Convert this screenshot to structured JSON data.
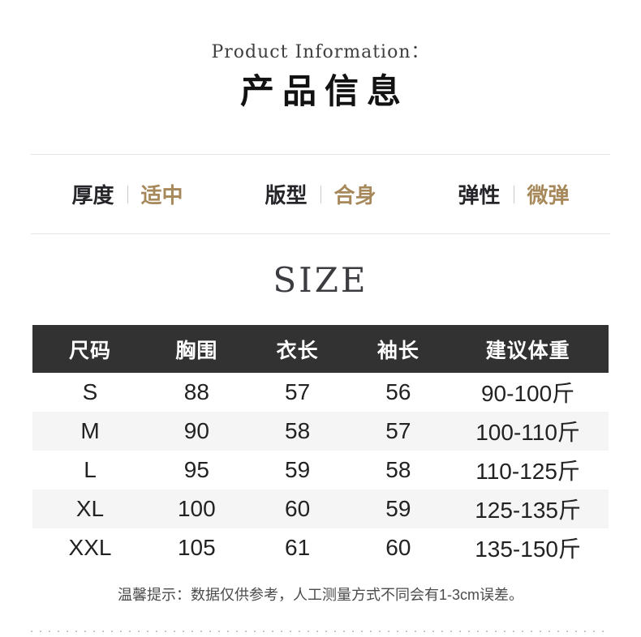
{
  "header": {
    "title_en": "Product Information：",
    "title_cn": "产品信息"
  },
  "attributes": [
    {
      "label": "厚度",
      "value": "适中"
    },
    {
      "label": "版型",
      "value": "合身"
    },
    {
      "label": "弹性",
      "value": "微弹"
    }
  ],
  "size_section": {
    "heading": "SIZE",
    "columns": [
      "尺码",
      "胸围",
      "衣长",
      "袖长",
      "建议体重"
    ],
    "rows": [
      [
        "S",
        "88",
        "57",
        "56",
        "90-100斤"
      ],
      [
        "M",
        "90",
        "58",
        "57",
        "100-110斤"
      ],
      [
        "L",
        "95",
        "59",
        "58",
        "110-125斤"
      ],
      [
        "XL",
        "100",
        "60",
        "59",
        "125-135斤"
      ],
      [
        "XXL",
        "105",
        "61",
        "60",
        "135-150斤"
      ]
    ],
    "note": "温馨提示：数据仅供参考，人工测量方式不同会有1-3cm误差。"
  },
  "colors": {
    "accent_gold": "#a6885a",
    "table_header_bg": "#323232",
    "table_alt_row_bg": "#f5f5f6",
    "rule_gray": "#e4e4e4",
    "dotted_gray": "#c6c6c6"
  }
}
